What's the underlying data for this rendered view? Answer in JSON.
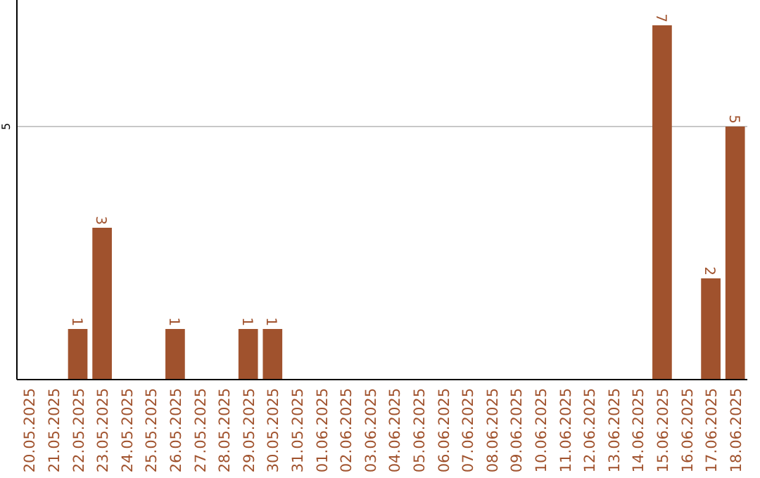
{
  "chart_data": {
    "type": "bar",
    "categories": [
      "20.05.2025",
      "21.05.2025",
      "22.05.2025",
      "23.05.2025",
      "24.05.2025",
      "25.05.2025",
      "26.05.2025",
      "27.05.2025",
      "28.05.2025",
      "29.05.2025",
      "30.05.2025",
      "31.05.2025",
      "01.06.2025",
      "02.06.2025",
      "03.06.2025",
      "04.06.2025",
      "05.06.2025",
      "06.06.2025",
      "07.06.2025",
      "08.06.2025",
      "09.06.2025",
      "10.06.2025",
      "11.06.2025",
      "12.06.2025",
      "13.06.2025",
      "14.06.2025",
      "15.06.2025",
      "16.06.2025",
      "17.06.2025",
      "18.06.2025"
    ],
    "values": [
      0,
      0,
      1,
      3,
      0,
      0,
      1,
      0,
      0,
      1,
      1,
      0,
      0,
      0,
      0,
      0,
      0,
      0,
      0,
      0,
      0,
      0,
      0,
      0,
      0,
      0,
      7,
      0,
      2,
      5
    ],
    "value_labels": [
      null,
      null,
      "1",
      "3",
      null,
      null,
      "1",
      null,
      null,
      "1",
      "1",
      null,
      null,
      null,
      null,
      null,
      null,
      null,
      null,
      null,
      null,
      null,
      null,
      null,
      null,
      null,
      "7",
      null,
      "2",
      "5"
    ],
    "color": "#a0522d",
    "ylim": [
      0,
      7.5
    ],
    "yticks": [
      5
    ],
    "grid": "y"
  }
}
